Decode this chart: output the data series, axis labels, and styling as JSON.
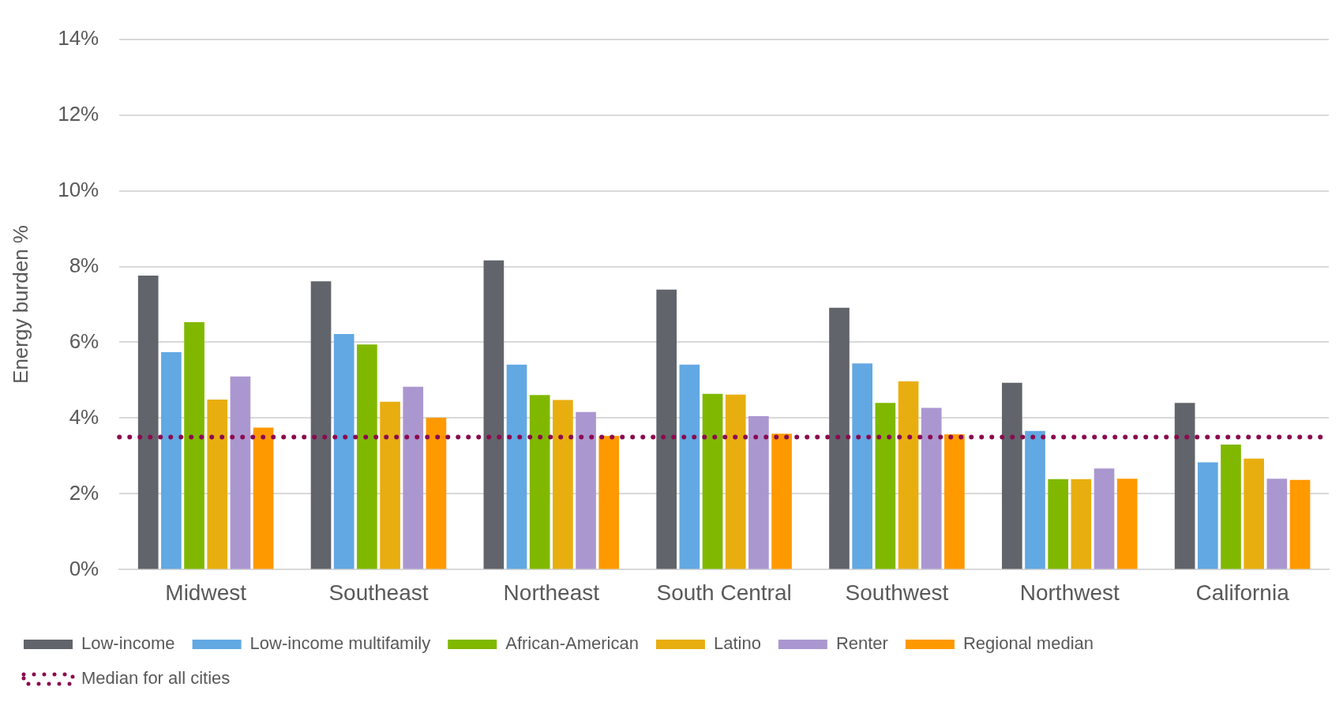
{
  "chart_data": {
    "type": "bar",
    "ylabel": "Energy burden %",
    "categories": [
      "Midwest",
      "Southeast",
      "Northeast",
      "South Central",
      "Southwest",
      "Northwest",
      "California"
    ],
    "series": [
      {
        "name": "Low-income",
        "color": "#61656b",
        "values": [
          7.76,
          7.61,
          8.16,
          7.39,
          6.91,
          4.93,
          4.4
        ]
      },
      {
        "name": "Low-income multifamily",
        "color": "#62a8e2",
        "values": [
          5.74,
          6.22,
          5.41,
          5.41,
          5.44,
          3.66,
          2.83
        ]
      },
      {
        "name": "African-American",
        "color": "#80b800",
        "values": [
          6.53,
          5.94,
          4.61,
          4.64,
          4.4,
          2.39,
          3.3
        ]
      },
      {
        "name": "Latino",
        "color": "#e8ae10",
        "values": [
          4.49,
          4.43,
          4.48,
          4.62,
          4.97,
          2.39,
          2.93
        ]
      },
      {
        "name": "Renter",
        "color": "#ab97d0",
        "values": [
          5.1,
          4.83,
          4.16,
          4.05,
          4.27,
          2.67,
          2.4
        ]
      },
      {
        "name": "Regional median",
        "color": "#ff9900",
        "values": [
          3.75,
          4.01,
          3.53,
          3.59,
          3.57,
          2.4,
          2.37
        ]
      }
    ],
    "ylim": [
      0,
      14
    ],
    "yticks": [
      {
        "value": 0,
        "label": "0%"
      },
      {
        "value": 2,
        "label": "2%"
      },
      {
        "value": 4,
        "label": "4%"
      },
      {
        "value": 6,
        "label": "6%"
      },
      {
        "value": 8,
        "label": "8%"
      },
      {
        "value": 10,
        "label": "10%"
      },
      {
        "value": 12,
        "label": "12%"
      },
      {
        "value": 14,
        "label": "14%"
      }
    ],
    "ref_lines": [
      {
        "axis": "y",
        "value": 3.5,
        "label": "Median for all cities",
        "color": "#8b0a50",
        "line_style": "dotted"
      }
    ],
    "grid": "y",
    "legend": "bottom"
  }
}
